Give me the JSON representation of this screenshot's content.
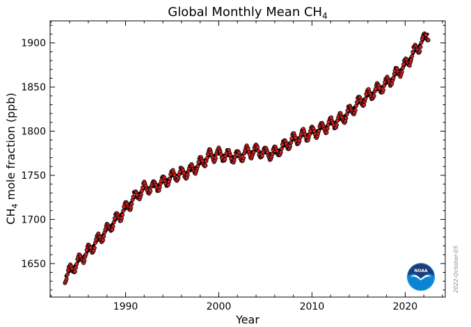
{
  "chart_data": {
    "type": "line",
    "title": "Global Monthly Mean CH",
    "title_subscript": "4",
    "xlabel": "Year",
    "ylabel_prefix": "CH",
    "ylabel_subscript": "4",
    "ylabel_suffix": " mole fraction (ppb)",
    "xlim": [
      1981.9,
      2024.3
    ],
    "ylim": [
      1612,
      1925
    ],
    "xticks": [
      1990,
      2000,
      2010,
      2020
    ],
    "xtick_labels": [
      "1990",
      "2000",
      "2010",
      "2020"
    ],
    "yticks": [
      1650,
      1700,
      1750,
      1800,
      1850,
      1900
    ],
    "ytick_labels": [
      "1650",
      "1700",
      "1750",
      "1800",
      "1850",
      "1900"
    ],
    "grid": false,
    "date_stamp": "2022-October-05",
    "logo_text": "NOAA",
    "colors": {
      "monthly_points": "#d42020",
      "trend_line": "#000000",
      "logo_blue": "#0a85d3",
      "logo_navy": "#1d3b7a"
    },
    "series": [
      {
        "kind": "monthly_mean_points",
        "x_start": 1983.5,
        "x_step": 0.0833,
        "seasonal_amplitude": 7,
        "seasonal_phase": 0.75
      },
      {
        "kind": "deseasonalized_trend",
        "x": [
          1983.5,
          1984,
          1985,
          1986,
          1987,
          1988,
          1989,
          1990,
          1991,
          1992,
          1993,
          1994,
          1995,
          1996,
          1997,
          1998,
          1999,
          2000,
          2001,
          2002,
          2003,
          2004,
          2005,
          2006,
          2007,
          2008,
          2009,
          2010,
          2011,
          2012,
          2013,
          2014,
          2015,
          2016,
          2017,
          2018,
          2019,
          2020,
          2021,
          2022.5
        ],
        "y": [
          1635,
          1641,
          1653,
          1664,
          1676,
          1688,
          1700,
          1712,
          1725,
          1735,
          1737,
          1742,
          1749,
          1752,
          1755,
          1763,
          1772,
          1774,
          1772,
          1771,
          1776,
          1778,
          1775,
          1775,
          1783,
          1790,
          1795,
          1798,
          1803,
          1808,
          1813,
          1822,
          1832,
          1840,
          1847,
          1854,
          1864,
          1875,
          1890,
          1911
        ]
      }
    ]
  }
}
